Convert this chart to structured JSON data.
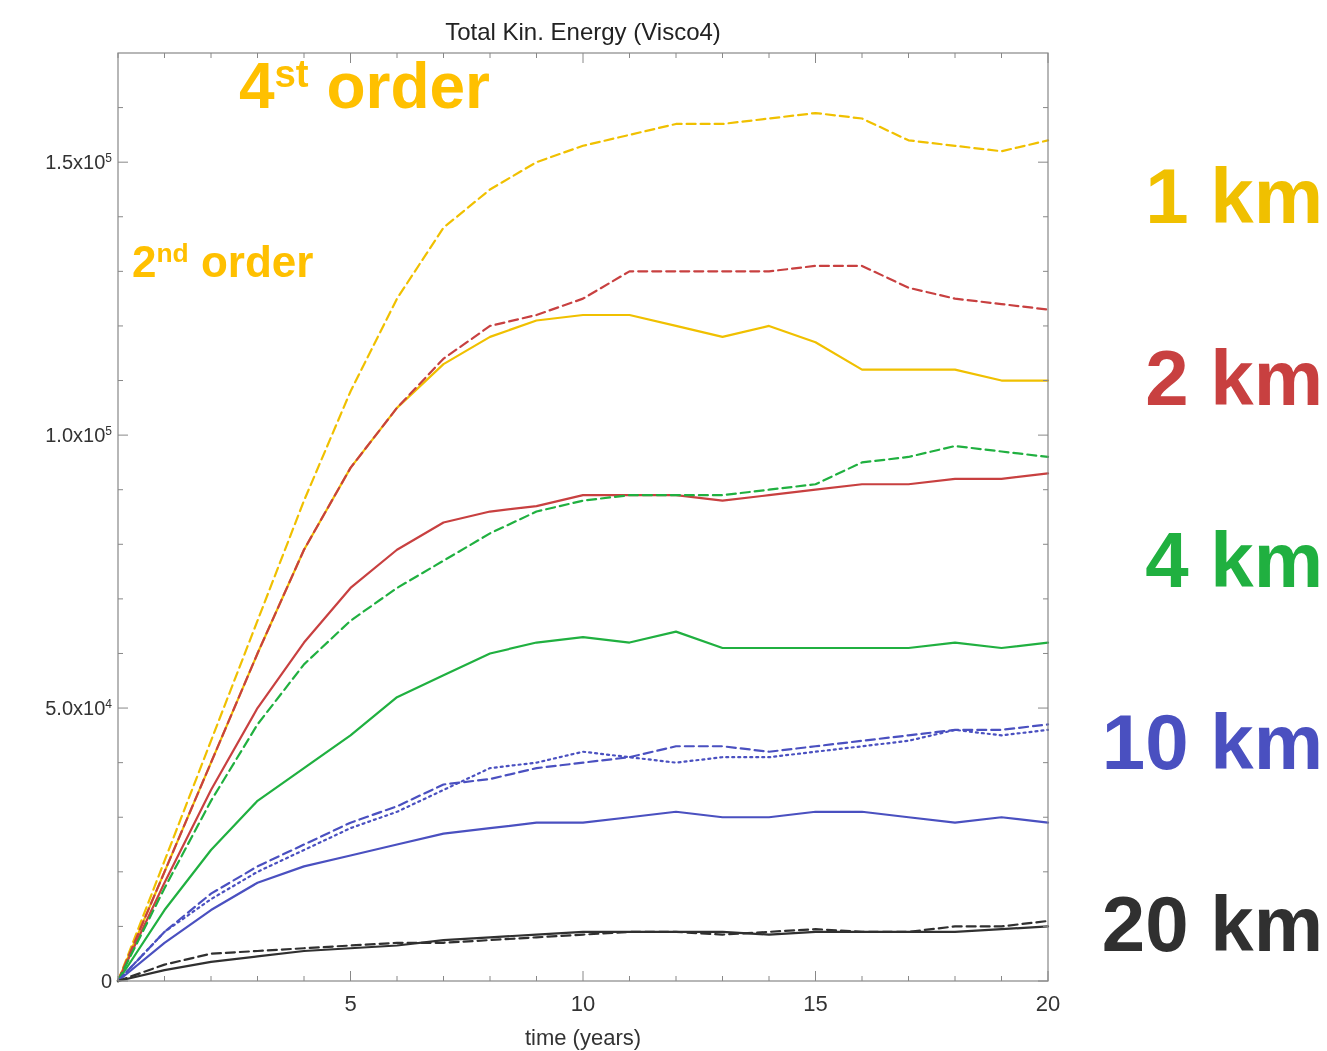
{
  "chart_data": {
    "type": "line",
    "title": "Total Kin. Energy (Visco4)",
    "xlabel": "time (years)",
    "x": [
      0,
      1,
      2,
      3,
      4,
      5,
      6,
      7,
      8,
      9,
      10,
      11,
      12,
      13,
      14,
      15,
      16,
      17,
      18,
      19,
      20
    ],
    "xlim": [
      0,
      20
    ],
    "ylim": [
      0,
      170000
    ],
    "xticks": [
      {
        "value": 0,
        "label": null
      },
      {
        "value": 1,
        "label": null
      },
      {
        "value": 2,
        "label": null
      },
      {
        "value": 3,
        "label": null
      },
      {
        "value": 4,
        "label": null
      },
      5,
      {
        "value": 6,
        "label": null
      },
      {
        "value": 7,
        "label": null
      },
      {
        "value": 8,
        "label": null
      },
      {
        "value": 9,
        "label": null
      },
      10,
      {
        "value": 11,
        "label": null
      },
      {
        "value": 12,
        "label": null
      },
      {
        "value": 13,
        "label": null
      },
      {
        "value": 14,
        "label": null
      },
      15,
      {
        "value": 16,
        "label": null
      },
      {
        "value": 17,
        "label": null
      },
      {
        "value": 18,
        "label": null
      },
      {
        "value": 19,
        "label": null
      },
      20
    ],
    "yticks": [
      0,
      {
        "value": 10000,
        "label": null
      },
      {
        "value": 20000,
        "label": null
      },
      {
        "value": 30000,
        "label": null
      },
      {
        "value": 40000,
        "label": null
      },
      {
        "value": 50000,
        "label": "5.0x10$^{4}$"
      },
      {
        "value": 60000,
        "label": null
      },
      {
        "value": 70000,
        "label": null
      },
      {
        "value": 80000,
        "label": null
      },
      {
        "value": 90000,
        "label": null
      },
      {
        "value": 100000,
        "label": "1.0x10$^{5}$"
      },
      {
        "value": 110000,
        "label": null
      },
      {
        "value": 120000,
        "label": null
      },
      {
        "value": 130000,
        "label": null
      },
      {
        "value": 140000,
        "label": null
      },
      {
        "value": 150000,
        "label": "1.5x10$^{5}$"
      },
      {
        "value": 160000,
        "label": null
      }
    ],
    "grid": false,
    "legend": false,
    "annotations": [
      "4$^{st}$ order",
      "2$^{nd}$ order"
    ],
    "series": [
      {
        "name": "1 km",
        "color": "#f0c000",
        "line_style": "dashed",
        "values": [
          0,
          22000,
          44000,
          66000,
          88000,
          108000,
          125000,
          138000,
          145000,
          150000,
          153000,
          155000,
          157000,
          157000,
          158000,
          159000,
          158000,
          154000,
          153000,
          152000,
          154000
        ]
      },
      {
        "color": "#f0c000",
        "line_style": "solid",
        "values": [
          0,
          20000,
          40000,
          60000,
          79000,
          94000,
          105000,
          113000,
          118000,
          121000,
          122000,
          122000,
          120000,
          118000,
          120000,
          117000,
          112000,
          112000,
          112000,
          110000,
          110000
        ]
      },
      {
        "name": "2 km",
        "color": "#c84040",
        "line_style": "dashed",
        "values": [
          0,
          20000,
          40000,
          60000,
          79000,
          94000,
          105000,
          114000,
          120000,
          122000,
          125000,
          130000,
          130000,
          130000,
          130000,
          131000,
          131000,
          127000,
          125000,
          124000,
          123000
        ]
      },
      {
        "color": "#c84040",
        "line_style": "solid",
        "values": [
          0,
          18000,
          35000,
          50000,
          62000,
          72000,
          79000,
          84000,
          86000,
          87000,
          89000,
          89000,
          89000,
          88000,
          89000,
          90000,
          91000,
          91000,
          92000,
          92000,
          93000
        ]
      },
      {
        "name": "4 km",
        "color": "#20b040",
        "line_style": "dashed",
        "values": [
          0,
          17000,
          33000,
          47000,
          58000,
          66000,
          72000,
          77000,
          82000,
          86000,
          88000,
          89000,
          89000,
          89000,
          90000,
          91000,
          95000,
          96000,
          98000,
          97000,
          96000
        ]
      },
      {
        "color": "#20b040",
        "line_style": "solid",
        "values": [
          0,
          13000,
          24000,
          33000,
          39000,
          45000,
          52000,
          56000,
          60000,
          62000,
          63000,
          62000,
          64000,
          61000,
          61000,
          61000,
          61000,
          61000,
          62000,
          61000,
          62000
        ]
      },
      {
        "name": "10 km",
        "color": "#4a50c0",
        "line_style": "dashed",
        "values": [
          0,
          9000,
          16000,
          21000,
          25000,
          29000,
          32000,
          36000,
          37000,
          39000,
          40000,
          41000,
          43000,
          43000,
          42000,
          43000,
          44000,
          45000,
          46000,
          46000,
          47000
        ]
      },
      {
        "color": "#4a50c0",
        "line_style": "dotted",
        "values": [
          0,
          9000,
          15000,
          20000,
          24000,
          28000,
          31000,
          35000,
          39000,
          40000,
          42000,
          41000,
          40000,
          41000,
          41000,
          42000,
          43000,
          44000,
          46000,
          45000,
          46000
        ]
      },
      {
        "color": "#4a50c0",
        "line_style": "solid",
        "values": [
          0,
          7000,
          13000,
          18000,
          21000,
          23000,
          25000,
          27000,
          28000,
          29000,
          29000,
          30000,
          31000,
          30000,
          30000,
          31000,
          31000,
          30000,
          29000,
          30000,
          29000
        ]
      },
      {
        "name": "20 km",
        "color": "#303030",
        "line_style": "solid",
        "values": [
          0,
          2000,
          3500,
          4500,
          5500,
          6000,
          6500,
          7500,
          8000,
          8500,
          9000,
          9000,
          9000,
          9000,
          8500,
          9000,
          9000,
          9000,
          9000,
          9500,
          10000
        ]
      },
      {
        "color": "#303030",
        "line_style": "dashed",
        "values": [
          0,
          3000,
          5000,
          5500,
          6000,
          6500,
          7000,
          7000,
          7500,
          8000,
          8500,
          9000,
          9000,
          8500,
          9000,
          9500,
          9000,
          9000,
          10000,
          10000,
          11000
        ]
      }
    ]
  }
}
